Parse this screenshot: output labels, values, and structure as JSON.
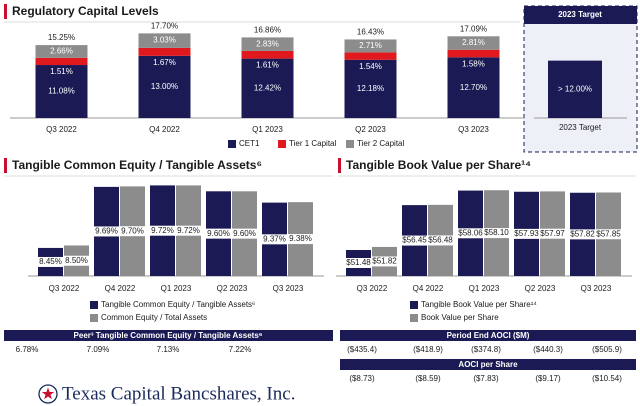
{
  "chart_data": [
    {
      "type": "stacked_bar",
      "title": "Regulatory Capital Levels",
      "categories": [
        "Q3 2022",
        "Q4 2022",
        "Q1 2023",
        "Q2 2023",
        "Q3 2023"
      ],
      "series": [
        {
          "name": "CET1",
          "color": "#1b1a55",
          "values": [
            11.08,
            13.0,
            12.42,
            12.18,
            12.7
          ],
          "value_labels": [
            "11.08%",
            "13.00%",
            "12.42%",
            "12.18%",
            "12.70%"
          ]
        },
        {
          "name": "Tier 1 Capital",
          "color": "#e0191f",
          "values": [
            1.51,
            1.67,
            1.61,
            1.54,
            1.58
          ],
          "value_labels": [
            "1.51%",
            "1.67%",
            "1.61%",
            "1.54%",
            "1.58%"
          ]
        },
        {
          "name": "Tier 2 Capital",
          "color": "#8c8c8c",
          "values": [
            2.66,
            3.03,
            2.83,
            2.71,
            2.81
          ],
          "value_labels": [
            "2.66%",
            "3.03%",
            "2.83%",
            "2.71%",
            "2.81%"
          ]
        }
      ],
      "totals": {
        "values": [
          15.25,
          17.7,
          16.86,
          16.43,
          17.09
        ],
        "value_labels": [
          "15.25%",
          "17.70%",
          "16.86%",
          "16.43%",
          "17.09%"
        ]
      },
      "target": {
        "title": "2023 Target",
        "category": "2023 Target",
        "value": 12,
        "value_label": "> 12.00%",
        "color": "#1b1a55"
      },
      "ylim": [
        0,
        20.5
      ]
    },
    {
      "type": "bar",
      "title": "Tangible Common Equity / Tangible Assets⁶",
      "categories": [
        "Q3 2022",
        "Q4 2022",
        "Q1 2023",
        "Q2 2023",
        "Q3 2023"
      ],
      "series": [
        {
          "name": "Tangible Common Equity / Tangible Assets⁶",
          "color": "#1b1a55",
          "values": [
            8.45,
            9.69,
            9.72,
            9.6,
            9.37
          ],
          "value_labels": [
            "8.45%",
            "9.69%",
            "9.72%",
            "9.60%",
            "9.37%"
          ]
        },
        {
          "name": "Common Equity / Total Assets",
          "color": "#8c8c8c",
          "values": [
            8.5,
            9.7,
            9.72,
            9.6,
            9.38
          ],
          "value_labels": [
            "8.50%",
            "9.70%",
            "9.72%",
            "9.60%",
            "9.38%"
          ]
        }
      ],
      "ylim": [
        7.88,
        9.85
      ]
    },
    {
      "type": "bar",
      "title": "Tangible Book Value per Share¹⁴",
      "categories": [
        "Q3 2022",
        "Q4 2022",
        "Q1 2023",
        "Q2 2023",
        "Q3 2023"
      ],
      "series": [
        {
          "name": "Tangible Book Value per Share¹⁴",
          "color": "#1b1a55",
          "values": [
            51.48,
            56.45,
            58.06,
            57.93,
            57.82
          ],
          "value_labels": [
            "$51.48",
            "$56.45",
            "$58.06",
            "$57.93",
            "$57.82"
          ]
        },
        {
          "name": "Book Value per Share",
          "color": "#8c8c8c",
          "values": [
            51.82,
            56.48,
            58.1,
            57.97,
            57.85
          ],
          "value_labels": [
            "$51.82",
            "$56.48",
            "$58.10",
            "$57.97",
            "$57.85"
          ]
        }
      ],
      "ylim": [
        48.6,
        58.9
      ]
    }
  ],
  "peer_table": {
    "title": "Peer³ Tangible Common Equity / Tangible Assets⁶",
    "values": [
      "6.78%",
      "7.09%",
      "7.13%",
      "7.22%"
    ]
  },
  "aoci_table": {
    "sections": [
      {
        "title": "Period End AOCI ($M)",
        "values": [
          "($435.4)",
          "($418.9)",
          "($374.8)",
          "($440.3)",
          "($505.9)"
        ]
      },
      {
        "title": "AOCI per Share",
        "values": [
          "($8.73)",
          "($8.59)",
          "($7.83)",
          "($9.17)",
          "($10.54)"
        ]
      }
    ]
  },
  "logo": {
    "text": "Texas Capital Bancshares, Inc."
  }
}
